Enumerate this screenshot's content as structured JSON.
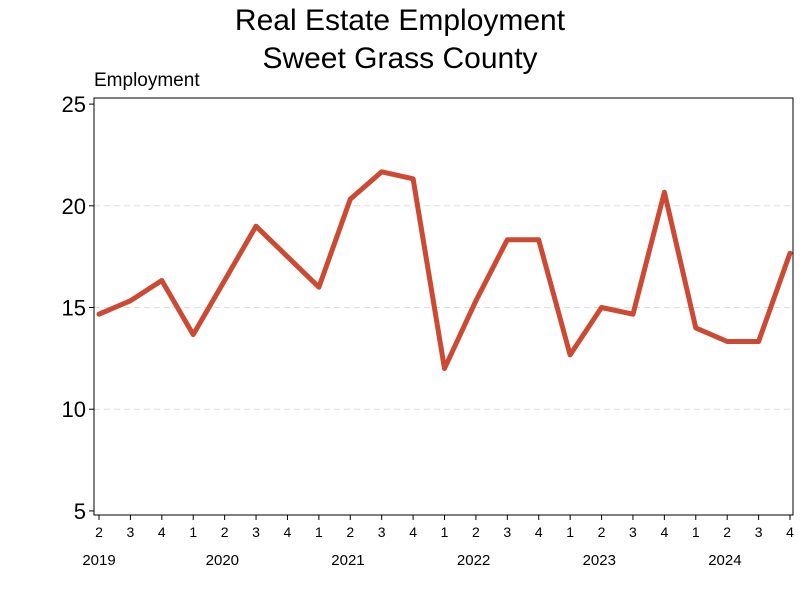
{
  "chart_data": {
    "type": "line",
    "title": [
      "Real Estate Employment",
      "Sweet Grass County"
    ],
    "ylabel": "Employment",
    "xlabel": "",
    "ylim": [
      4.8,
      25.3
    ],
    "yticks": [
      5,
      10,
      15,
      20,
      25
    ],
    "grid": true,
    "legend": "none",
    "line_color": "#cc4a33",
    "grid_color": "#dddddd",
    "x": [
      {
        "quarter": "2",
        "year": "2019"
      },
      {
        "quarter": "3",
        "year": "2019"
      },
      {
        "quarter": "4",
        "year": "2019"
      },
      {
        "quarter": "1",
        "year": "2020"
      },
      {
        "quarter": "2",
        "year": "2020"
      },
      {
        "quarter": "3",
        "year": "2020"
      },
      {
        "quarter": "4",
        "year": "2020"
      },
      {
        "quarter": "1",
        "year": "2021"
      },
      {
        "quarter": "2",
        "year": "2021"
      },
      {
        "quarter": "3",
        "year": "2021"
      },
      {
        "quarter": "4",
        "year": "2021"
      },
      {
        "quarter": "1",
        "year": "2022"
      },
      {
        "quarter": "2",
        "year": "2022"
      },
      {
        "quarter": "3",
        "year": "2022"
      },
      {
        "quarter": "4",
        "year": "2022"
      },
      {
        "quarter": "1",
        "year": "2023"
      },
      {
        "quarter": "2",
        "year": "2023"
      },
      {
        "quarter": "3",
        "year": "2023"
      },
      {
        "quarter": "4",
        "year": "2023"
      },
      {
        "quarter": "1",
        "year": "2024"
      },
      {
        "quarter": "2",
        "year": "2024"
      },
      {
        "quarter": "3",
        "year": "2024"
      },
      {
        "quarter": "4",
        "year": "2024"
      }
    ],
    "years": [
      "2019",
      "2020",
      "2021",
      "2022",
      "2023",
      "2024"
    ],
    "series": [
      {
        "values": [
          14.67,
          15.33,
          16.33,
          13.67,
          16.33,
          19.0,
          17.5,
          16.0,
          20.33,
          21.67,
          21.33,
          12.0,
          15.33,
          18.33,
          18.33,
          12.67,
          15.0,
          14.67,
          20.67,
          14.0,
          13.33,
          13.33,
          17.67
        ]
      }
    ]
  }
}
